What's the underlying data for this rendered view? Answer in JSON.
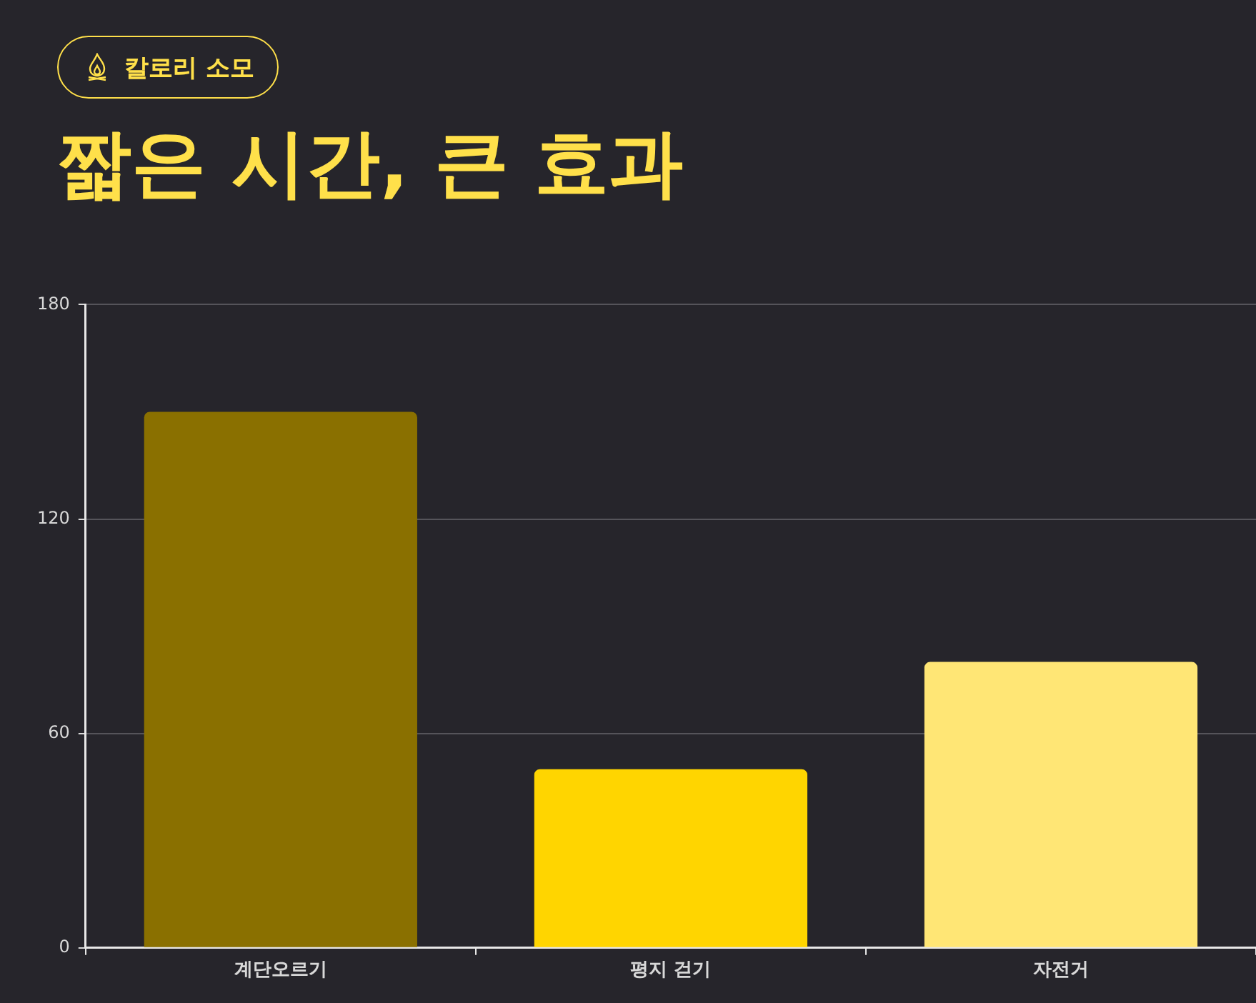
{
  "chart_data": {
    "type": "bar",
    "subtitle": "칼로리 소모",
    "title": "짧은 시간, 큰 효과",
    "categories": [
      "계단오르기",
      "평지 걷기",
      "자전거"
    ],
    "values": [
      150,
      50,
      80
    ],
    "colors": [
      "#8a7000",
      "#ffd500",
      "#ffe675"
    ],
    "ylim": [
      0,
      180
    ],
    "yticks": [
      0,
      60,
      120,
      180
    ],
    "grid": "y",
    "legend": false
  }
}
